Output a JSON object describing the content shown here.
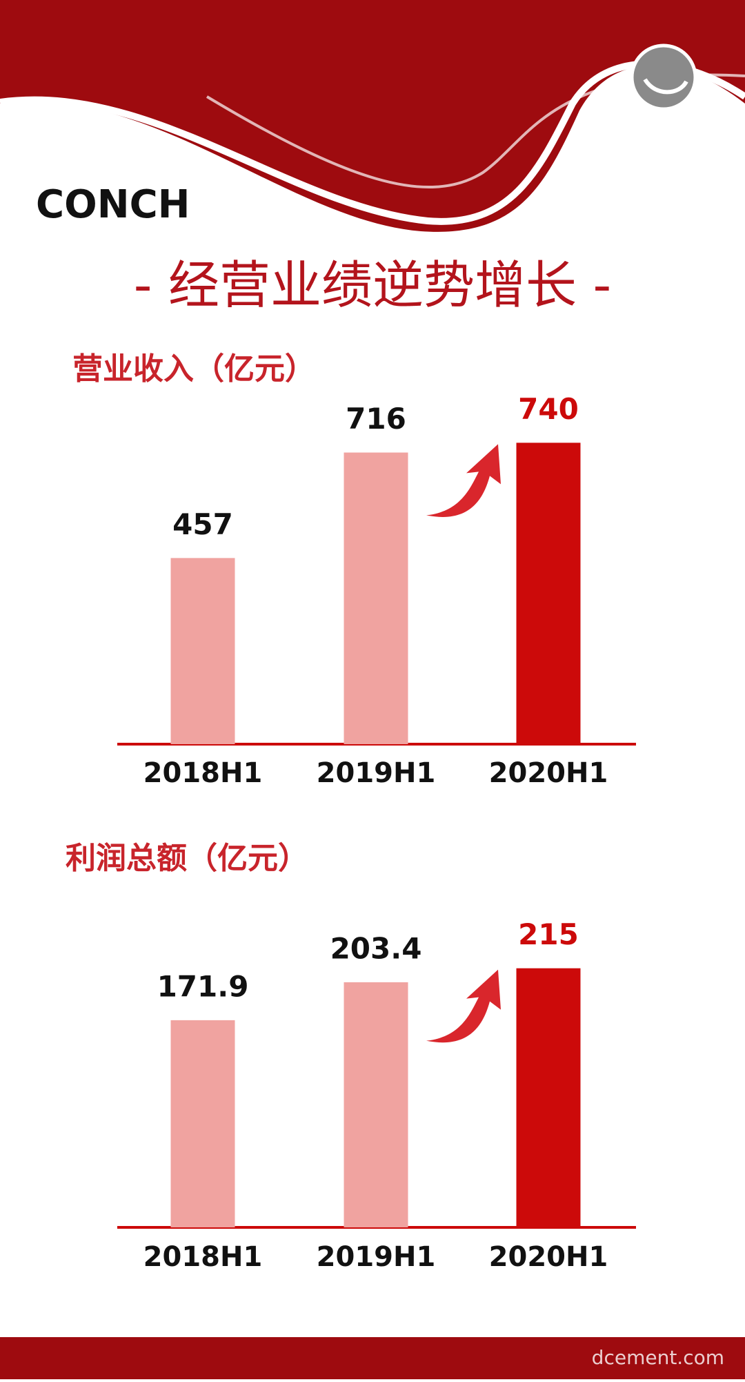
{
  "header": {
    "logo": "CONCH",
    "title": "- 经营业绩逆势增长 -"
  },
  "chart_data": [
    {
      "type": "bar",
      "title": "营业收入（亿元）",
      "categories": [
        "2018H1",
        "2019H1",
        "2020H1"
      ],
      "values": [
        457,
        716,
        740
      ],
      "colors": [
        "#f0a3a0",
        "#f0a3a0",
        "#cc0a0a"
      ],
      "ylim": [
        0,
        800
      ]
    },
    {
      "type": "bar",
      "title": "利润总额（亿元）",
      "categories": [
        "2018H1",
        "2019H1",
        "2020H1"
      ],
      "values": [
        171.9,
        203.4,
        215
      ],
      "colors": [
        "#f0a3a0",
        "#f0a3a0",
        "#cc0a0a"
      ],
      "ylim": [
        0,
        240
      ]
    }
  ],
  "footer": {
    "watermark": "dcement.com"
  }
}
